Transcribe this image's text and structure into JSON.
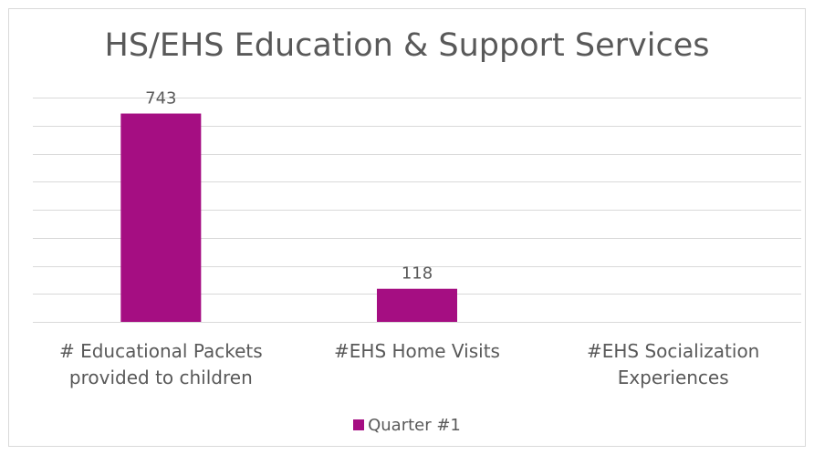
{
  "chart_data": {
    "type": "bar",
    "title": "HS/EHS Education & Support Services",
    "categories": [
      [
        "# Educational Packets",
        "provided to children"
      ],
      [
        "#EHS Home Visits"
      ],
      [
        "#EHS Socialization",
        "Experiences"
      ]
    ],
    "series": [
      {
        "name": "Quarter #1",
        "values": [
          743,
          118,
          null
        ],
        "data_labels": [
          "743",
          "118",
          ""
        ],
        "color": "#A50E82"
      }
    ],
    "ylim": [
      0,
      800
    ],
    "ytick_step": 100,
    "grid": true,
    "legend": "bottom",
    "colors": {
      "bar": "#A50E82",
      "grid": "#D9D9D9",
      "text": "#595959",
      "border": "#D9D9D9"
    }
  }
}
